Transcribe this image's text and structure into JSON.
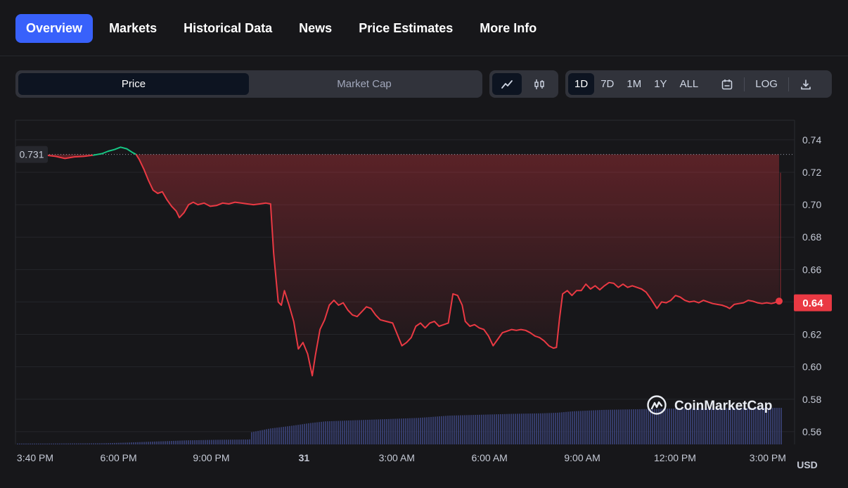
{
  "tabs": [
    {
      "label": "Overview",
      "active": true
    },
    {
      "label": "Markets"
    },
    {
      "label": "Historical Data"
    },
    {
      "label": "News"
    },
    {
      "label": "Price Estimates"
    },
    {
      "label": "More Info"
    }
  ],
  "segment": {
    "price_label": "Price",
    "market_cap_label": "Market Cap"
  },
  "chart_types": {
    "line_icon": "line-chart-icon",
    "candle_icon": "candlestick-icon"
  },
  "ranges": {
    "d1": "1D",
    "d7": "7D",
    "m1": "1M",
    "y1": "1Y",
    "all": "ALL",
    "log": "LOG"
  },
  "icons": {
    "calendar": "calendar-icon",
    "download": "download-icon"
  },
  "colors": {
    "accent": "#3861fb",
    "down": "#ea3943",
    "up": "#16c784",
    "volume": "#3b4378"
  },
  "watermark": "CoinMarketCap",
  "chart_data": {
    "type": "line",
    "title": "",
    "xlabel": "",
    "ylabel": "USD",
    "ylim": [
      0.553,
      0.756
    ],
    "y_ticks": [
      "0.74",
      "0.72",
      "0.70",
      "0.68",
      "0.66",
      "0.64",
      "0.62",
      "0.60",
      "0.58",
      "0.56"
    ],
    "y_tick_values": [
      0.74,
      0.72,
      0.7,
      0.68,
      0.66,
      0.64,
      0.62,
      0.6,
      0.58,
      0.56
    ],
    "x_ticks": [
      "3:40 PM",
      "6:00 PM",
      "9:00 PM",
      "31",
      "3:00 AM",
      "6:00 AM",
      "9:00 AM",
      "12:00 PM",
      "3:00 PM"
    ],
    "x_tick_hours": [
      0,
      2.333,
      5.333,
      8.333,
      11.333,
      14.333,
      17.333,
      20.333,
      23.333
    ],
    "x_range_hours": [
      0,
      23.9
    ],
    "open_price_label": "0.731",
    "open_price": 0.731,
    "last_price_label": "0.64",
    "last_price": 0.6395,
    "series": [
      {
        "name": "Price",
        "points": [
          [
            0,
            0.7305
          ],
          [
            0.3,
            0.7298
          ],
          [
            0.6,
            0.7285
          ],
          [
            0.9,
            0.7295
          ],
          [
            1.2,
            0.7298
          ],
          [
            1.5,
            0.7305
          ],
          [
            1.8,
            0.7315
          ],
          [
            2.0,
            0.733
          ],
          [
            2.2,
            0.734
          ],
          [
            2.4,
            0.7355
          ],
          [
            2.6,
            0.7345
          ],
          [
            2.8,
            0.732
          ],
          [
            2.9,
            0.731
          ],
          [
            3.0,
            0.728
          ],
          [
            3.15,
            0.722
          ],
          [
            3.3,
            0.715
          ],
          [
            3.45,
            0.709
          ],
          [
            3.6,
            0.707
          ],
          [
            3.75,
            0.708
          ],
          [
            3.9,
            0.703
          ],
          [
            4.05,
            0.699
          ],
          [
            4.2,
            0.696
          ],
          [
            4.3,
            0.692
          ],
          [
            4.45,
            0.695
          ],
          [
            4.6,
            0.7
          ],
          [
            4.75,
            0.7015
          ],
          [
            4.9,
            0.7
          ],
          [
            5.1,
            0.701
          ],
          [
            5.3,
            0.699
          ],
          [
            5.5,
            0.6995
          ],
          [
            5.7,
            0.701
          ],
          [
            5.9,
            0.7005
          ],
          [
            6.1,
            0.7015
          ],
          [
            6.3,
            0.701
          ],
          [
            6.5,
            0.7005
          ],
          [
            6.7,
            0.7
          ],
          [
            6.9,
            0.7005
          ],
          [
            7.1,
            0.701
          ],
          [
            7.25,
            0.7005
          ],
          [
            7.35,
            0.67
          ],
          [
            7.45,
            0.65
          ],
          [
            7.5,
            0.64
          ],
          [
            7.6,
            0.638
          ],
          [
            7.7,
            0.647
          ],
          [
            7.85,
            0.638
          ],
          [
            8.0,
            0.628
          ],
          [
            8.15,
            0.611
          ],
          [
            8.3,
            0.615
          ],
          [
            8.45,
            0.608
          ],
          [
            8.6,
            0.5945
          ],
          [
            8.7,
            0.607
          ],
          [
            8.85,
            0.623
          ],
          [
            9.0,
            0.629
          ],
          [
            9.15,
            0.638
          ],
          [
            9.3,
            0.641
          ],
          [
            9.45,
            0.638
          ],
          [
            9.6,
            0.6395
          ],
          [
            9.75,
            0.635
          ],
          [
            9.9,
            0.632
          ],
          [
            10.05,
            0.631
          ],
          [
            10.2,
            0.634
          ],
          [
            10.35,
            0.637
          ],
          [
            10.5,
            0.636
          ],
          [
            10.65,
            0.632
          ],
          [
            10.8,
            0.629
          ],
          [
            11.0,
            0.628
          ],
          [
            11.2,
            0.627
          ],
          [
            11.35,
            0.62
          ],
          [
            11.5,
            0.613
          ],
          [
            11.65,
            0.615
          ],
          [
            11.8,
            0.618
          ],
          [
            11.95,
            0.625
          ],
          [
            12.1,
            0.627
          ],
          [
            12.25,
            0.624
          ],
          [
            12.4,
            0.627
          ],
          [
            12.55,
            0.628
          ],
          [
            12.7,
            0.625
          ],
          [
            12.85,
            0.626
          ],
          [
            13.0,
            0.627
          ],
          [
            13.15,
            0.645
          ],
          [
            13.3,
            0.644
          ],
          [
            13.45,
            0.638
          ],
          [
            13.55,
            0.628
          ],
          [
            13.7,
            0.625
          ],
          [
            13.85,
            0.626
          ],
          [
            14.0,
            0.624
          ],
          [
            14.15,
            0.623
          ],
          [
            14.3,
            0.619
          ],
          [
            14.45,
            0.613
          ],
          [
            14.6,
            0.617
          ],
          [
            14.75,
            0.621
          ],
          [
            14.9,
            0.622
          ],
          [
            15.05,
            0.623
          ],
          [
            15.2,
            0.6225
          ],
          [
            15.35,
            0.623
          ],
          [
            15.5,
            0.6225
          ],
          [
            15.65,
            0.621
          ],
          [
            15.8,
            0.619
          ],
          [
            15.95,
            0.618
          ],
          [
            16.1,
            0.616
          ],
          [
            16.25,
            0.613
          ],
          [
            16.4,
            0.6115
          ],
          [
            16.5,
            0.612
          ],
          [
            16.6,
            0.63
          ],
          [
            16.7,
            0.645
          ],
          [
            16.85,
            0.647
          ],
          [
            17.0,
            0.644
          ],
          [
            17.15,
            0.647
          ],
          [
            17.3,
            0.647
          ],
          [
            17.45,
            0.651
          ],
          [
            17.6,
            0.648
          ],
          [
            17.75,
            0.65
          ],
          [
            17.9,
            0.6475
          ],
          [
            18.05,
            0.65
          ],
          [
            18.2,
            0.652
          ],
          [
            18.35,
            0.6515
          ],
          [
            18.5,
            0.649
          ],
          [
            18.65,
            0.651
          ],
          [
            18.8,
            0.649
          ],
          [
            18.95,
            0.65
          ],
          [
            19.1,
            0.649
          ],
          [
            19.25,
            0.648
          ],
          [
            19.4,
            0.646
          ],
          [
            19.55,
            0.642
          ],
          [
            19.65,
            0.639
          ],
          [
            19.75,
            0.636
          ],
          [
            19.9,
            0.64
          ],
          [
            20.05,
            0.6395
          ],
          [
            20.2,
            0.641
          ],
          [
            20.35,
            0.644
          ],
          [
            20.5,
            0.643
          ],
          [
            20.65,
            0.641
          ],
          [
            20.8,
            0.64
          ],
          [
            20.95,
            0.6405
          ],
          [
            21.1,
            0.6395
          ],
          [
            21.25,
            0.641
          ],
          [
            21.4,
            0.64
          ],
          [
            21.55,
            0.639
          ],
          [
            21.7,
            0.6385
          ],
          [
            21.85,
            0.638
          ],
          [
            22.0,
            0.637
          ],
          [
            22.1,
            0.636
          ],
          [
            22.25,
            0.6385
          ],
          [
            22.4,
            0.639
          ],
          [
            22.55,
            0.6395
          ],
          [
            22.7,
            0.641
          ],
          [
            22.85,
            0.6405
          ],
          [
            23.0,
            0.6395
          ],
          [
            23.15,
            0.639
          ],
          [
            23.3,
            0.6395
          ],
          [
            23.45,
            0.639
          ],
          [
            23.55,
            0.6395
          ],
          [
            23.7,
            0.6405
          ]
        ]
      },
      {
        "name": "Volume",
        "relative": true,
        "points": [
          [
            0,
            0.03
          ],
          [
            1.8,
            0.04
          ],
          [
            2.5,
            0.06
          ],
          [
            3.5,
            0.1
          ],
          [
            4.5,
            0.14
          ],
          [
            5.5,
            0.16
          ],
          [
            6.5,
            0.17
          ],
          [
            6.59,
            0.18
          ],
          [
            6.6,
            0.42
          ],
          [
            7.2,
            0.55
          ],
          [
            8.0,
            0.66
          ],
          [
            8.5,
            0.74
          ],
          [
            9.0,
            0.8
          ],
          [
            10.0,
            0.84
          ],
          [
            11.0,
            0.88
          ],
          [
            12.0,
            0.92
          ],
          [
            12.5,
            0.96
          ],
          [
            13.0,
            1.0
          ],
          [
            14.0,
            1.03
          ],
          [
            15.0,
            1.06
          ],
          [
            16.0,
            1.08
          ],
          [
            16.5,
            1.1
          ],
          [
            17.0,
            1.15
          ],
          [
            18.0,
            1.2
          ],
          [
            19.0,
            1.22
          ],
          [
            20.0,
            1.24
          ],
          [
            21.0,
            1.25
          ],
          [
            22.0,
            1.26
          ],
          [
            23.0,
            1.27
          ],
          [
            23.7,
            1.27
          ]
        ]
      }
    ]
  }
}
